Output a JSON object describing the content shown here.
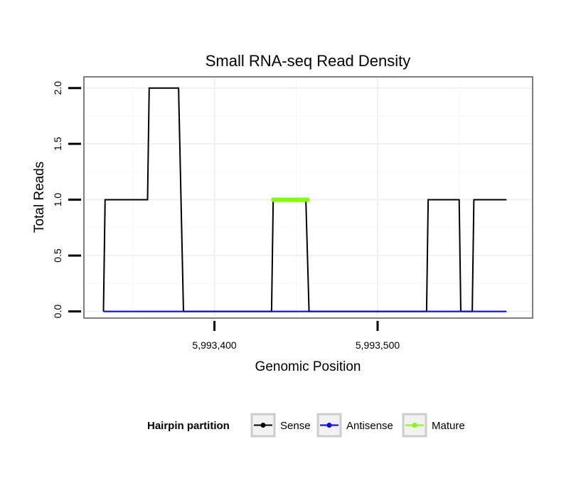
{
  "chart_data": {
    "type": "line",
    "title": "Small RNA-seq Read Density",
    "xlabel": "Genomic Position",
    "ylabel": "Total Reads",
    "xlim": [
      5993320,
      5993595
    ],
    "ylim": [
      -0.06,
      2.1
    ],
    "x_ticks": [
      {
        "value": 5993400,
        "label": "5,993,400"
      },
      {
        "value": 5993500,
        "label": "5,993,500"
      }
    ],
    "y_ticks": [
      {
        "value": 0.0,
        "label": "0.0"
      },
      {
        "value": 0.5,
        "label": "0.5"
      },
      {
        "value": 1.0,
        "label": "1.0"
      },
      {
        "value": 1.5,
        "label": "1.5"
      },
      {
        "value": 2.0,
        "label": "2.0"
      }
    ],
    "grid": true,
    "series": [
      {
        "name": "Sense",
        "color": "#000000",
        "x": [
          5993332,
          5993333,
          5993359,
          5993360,
          5993378,
          5993381,
          5993435,
          5993436,
          5993456,
          5993458,
          5993530,
          5993531,
          5993550,
          5993551,
          5993558,
          5993559,
          5993579
        ],
        "y": [
          0,
          1,
          1,
          2,
          2,
          0,
          0,
          1,
          1,
          0,
          0,
          1,
          1,
          0,
          0,
          1,
          1
        ]
      },
      {
        "name": "Antisense",
        "color": "#0000ff",
        "x": [
          5993332,
          5993579
        ],
        "y": [
          0,
          0
        ]
      },
      {
        "name": "Mature",
        "color": "#7fff00",
        "x": [
          5993436,
          5993457
        ],
        "y": [
          1,
          1
        ]
      }
    ],
    "legend": {
      "title": "Hairpin partition",
      "position": "bottom",
      "entries": [
        {
          "label": "Sense",
          "color": "#000000"
        },
        {
          "label": "Antisense",
          "color": "#0000ff"
        },
        {
          "label": "Mature",
          "color": "#7fff00"
        }
      ]
    }
  }
}
